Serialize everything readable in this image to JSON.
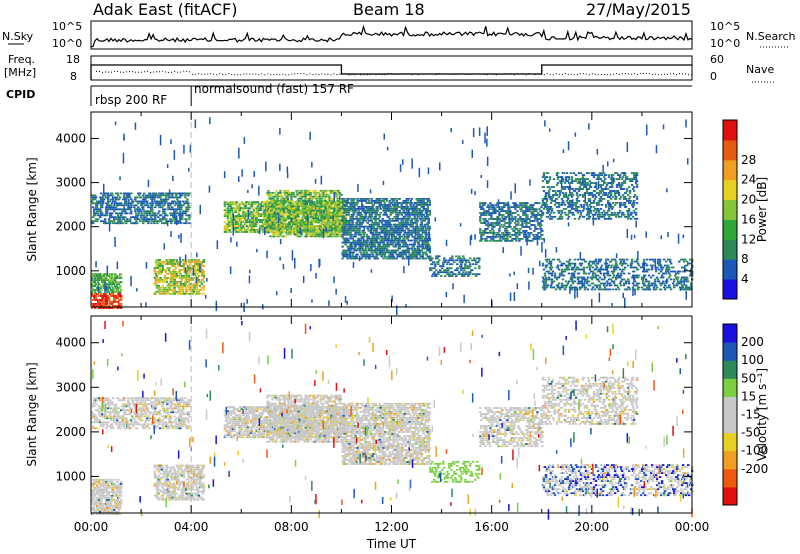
{
  "header": {
    "station": "Adak East (fitACF)",
    "beam": "Beam 18",
    "date": "27/May/2015"
  },
  "noise_panel": {
    "left_label": "N.Sky",
    "right_label": "N.Search",
    "left_ticks": [
      "10^5",
      "10^0"
    ],
    "right_ticks": [
      "10^5",
      "10^0"
    ]
  },
  "freq_panel": {
    "left_label_1": "Freq.",
    "left_label_2": "[MHz]",
    "right_label": "Nave",
    "left_ticks": [
      "18",
      "8"
    ],
    "right_ticks": [
      "60",
      "0"
    ]
  },
  "cpid_panel": {
    "label": "CPID",
    "programs": [
      {
        "name": "rbsp 200 RF",
        "start_hour": 0,
        "end_hour": 4
      },
      {
        "name": "normalsound (fast) 157 RF",
        "start_hour": 4,
        "end_hour": 24
      }
    ]
  },
  "colors": {
    "power": [
      "#1a10e0",
      "#1c58b8",
      "#2c8a5a",
      "#2ea83a",
      "#86c43a",
      "#e8d020",
      "#f0a020",
      "#e85a14",
      "#e01010"
    ],
    "velocity": [
      "#e01010",
      "#f05a10",
      "#f0a020",
      "#e8d020",
      "#c8c8c8",
      "#c8c8c8",
      "#7ad040",
      "#2e8a5a",
      "#1c58b8",
      "#1a10e0"
    ]
  },
  "chart_data": [
    {
      "type": "heatmap",
      "title": "",
      "xlabel": "",
      "ylabel": "Slant Range [km]",
      "xlim": [
        0,
        24
      ],
      "ylim": [
        180,
        4600
      ],
      "yticks": [
        1000,
        2000,
        3000,
        4000
      ],
      "colorbar_label": "Power [dB]",
      "colorbar_ticks": [
        "4",
        "8",
        "12",
        "16",
        "20",
        "24",
        "28"
      ],
      "colorbar_range": [
        0,
        30
      ]
    },
    {
      "type": "heatmap",
      "title": "",
      "xlabel": "Time UT",
      "ylabel": "Slant Range [km]",
      "xlim": [
        0,
        24
      ],
      "ylim": [
        180,
        4600
      ],
      "yticks": [
        1000,
        2000,
        3000,
        4000
      ],
      "xticks": [
        "00:00",
        "04:00",
        "08:00",
        "12:00",
        "16:00",
        "20:00",
        "00:00"
      ],
      "colorbar_label": "Velocity [m s⁻¹]",
      "colorbar_ticks": [
        "200",
        "100",
        "50",
        "15",
        "-15",
        "-50",
        "-100",
        "-200"
      ],
      "colorbar_range": [
        -250,
        250
      ]
    }
  ]
}
